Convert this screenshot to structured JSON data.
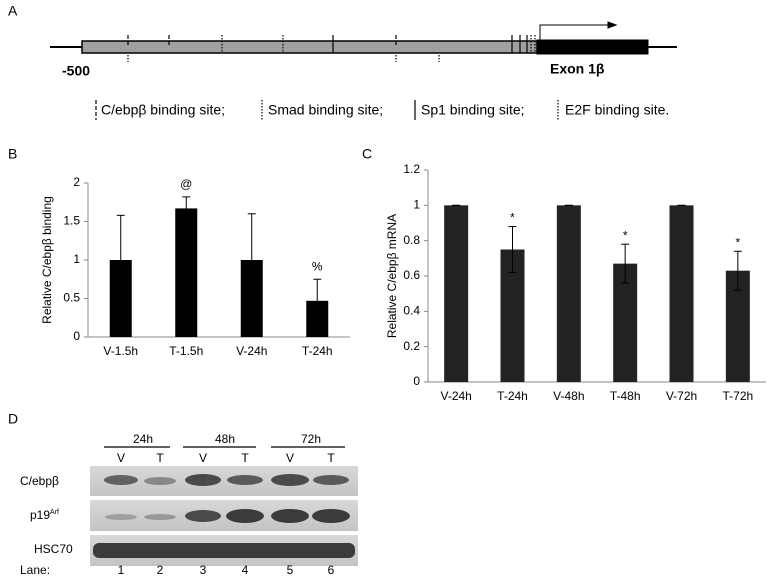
{
  "panel_a": {
    "label": "A",
    "start_label": "-500",
    "exon_label": "Exon 1β",
    "legend": [
      "C/ebpβ binding site;",
      "Smad binding site;",
      "Sp1 binding site;",
      "E2F binding site."
    ]
  },
  "chart_data": [
    {
      "panel": "B",
      "type": "bar",
      "ylabel": "Relative C/ebpβ binding",
      "categories": [
        "V-1.5h",
        "T-1.5h",
        "V-24h",
        "T-24h"
      ],
      "values": [
        1.0,
        1.67,
        1.0,
        0.47
      ],
      "errors": [
        0.58,
        0.15,
        0.6,
        0.28
      ],
      "color": "#000000",
      "ylim": [
        0,
        2
      ],
      "yticks": [
        0,
        0.5,
        1,
        1.5,
        2
      ],
      "annotations": [
        {
          "category": "T-1.5h",
          "text": "@"
        },
        {
          "category": "T-24h",
          "text": "%"
        }
      ]
    },
    {
      "panel": "C",
      "type": "bar",
      "ylabel": "Relative C/ebpβ mRNA",
      "categories": [
        "V-24h",
        "T-24h",
        "V-48h",
        "T-48h",
        "V-72h",
        "T-72h"
      ],
      "values": [
        1,
        0.75,
        1,
        0.67,
        1,
        0.63
      ],
      "errors": [
        0,
        0.13,
        0,
        0.11,
        0,
        0.11
      ],
      "color": "#222222",
      "ylim": [
        0,
        1.2
      ],
      "yticks": [
        0,
        0.2,
        0.4,
        0.6,
        0.8,
        1,
        1.2
      ],
      "annotations": [
        {
          "category": "T-24h",
          "text": "*"
        },
        {
          "category": "T-48h",
          "text": "*"
        },
        {
          "category": "T-72h",
          "text": "*"
        }
      ]
    }
  ],
  "panel_d": {
    "label": "D",
    "times": [
      "24h",
      "48h",
      "72h"
    ],
    "lanes_top": [
      "V",
      "T",
      "V",
      "T",
      "V",
      "T"
    ],
    "rows": [
      {
        "name": "C/ebpβ"
      },
      {
        "name": "p19",
        "sup": "Arf"
      },
      {
        "name": "HSC70"
      }
    ],
    "lane_title": "Lane:",
    "lane_numbers": [
      "1",
      "2",
      "3",
      "4",
      "5",
      "6"
    ]
  }
}
